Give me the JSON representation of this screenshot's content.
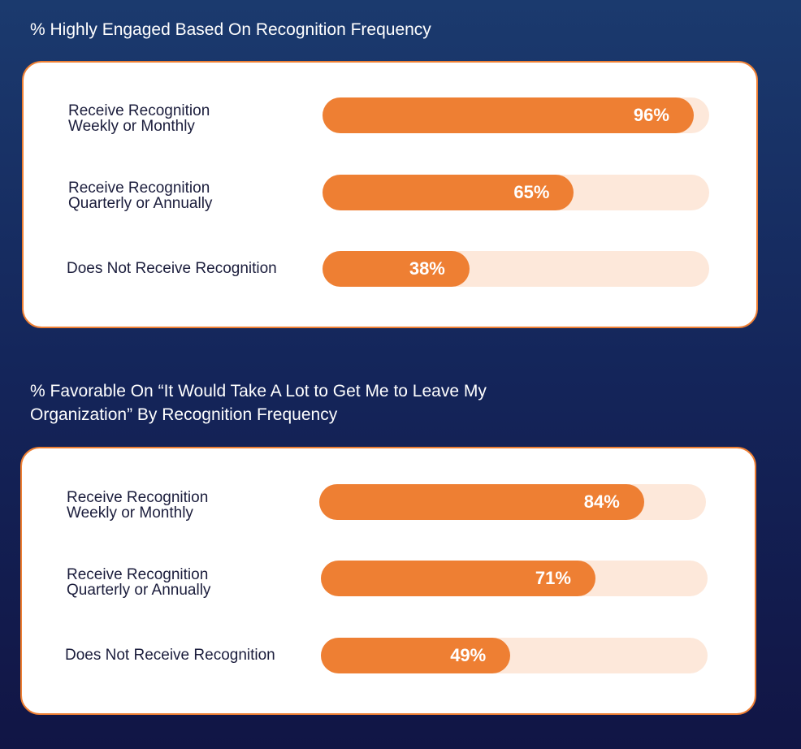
{
  "chart_data": [
    {
      "type": "bar",
      "orientation": "horizontal",
      "title": "% Highly Engaged Based On Recognition Frequency",
      "categories": [
        "Receive Recognition\nWeekly or Monthly",
        "Receive Recognition\nQuarterly or Annually",
        "Does Not Receive Recognition"
      ],
      "values": [
        96,
        65,
        38
      ],
      "value_labels": [
        "96%",
        "65%",
        "38%"
      ],
      "xlim": [
        0,
        100
      ],
      "unit": "%",
      "grid": false,
      "colors": {
        "fill": "#ee7f33",
        "track": "#fde8da"
      }
    },
    {
      "type": "bar",
      "orientation": "horizontal",
      "title": "% Favorable On “It Would Take A Lot to Get Me to Leave My Organization” By Recognition Frequency",
      "categories": [
        "Receive Recognition\nWeekly or Monthly",
        "Receive Recognition\nQuarterly or Annually",
        "Does Not Receive Recognition"
      ],
      "values": [
        84,
        71,
        49
      ],
      "value_labels": [
        "84%",
        "71%",
        "49%"
      ],
      "xlim": [
        0,
        100
      ],
      "unit": "%",
      "grid": false,
      "colors": {
        "fill": "#ee7f33",
        "track": "#fde8da"
      }
    }
  ],
  "colors": {
    "background_top": "#1b3a6e",
    "background_bottom": "#111545",
    "panel_border": "#ee7f33",
    "label_text": "#1b1d3c"
  }
}
